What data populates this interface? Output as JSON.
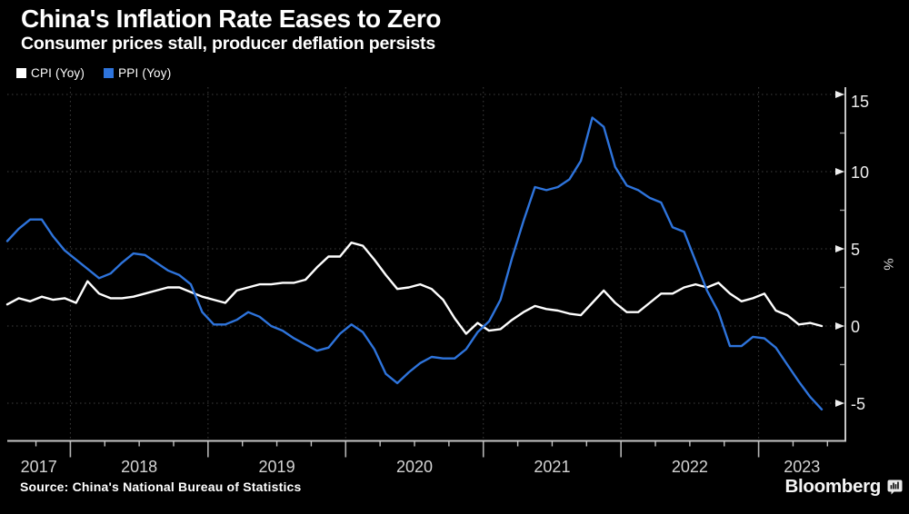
{
  "header": {
    "title": "China's Inflation Rate Eases to Zero",
    "subtitle": "Consumer prices stall, producer deflation persists"
  },
  "legend": {
    "items": [
      {
        "label": "CPI (Yoy)",
        "color": "#ffffff"
      },
      {
        "label": "PPI (Yoy)",
        "color": "#2e74dc"
      }
    ]
  },
  "chart_data": {
    "type": "line",
    "title": "China's Inflation Rate Eases to Zero",
    "subtitle": "Consumer prices stall, producer deflation persists",
    "x_start": "2017-07",
    "x_freq": "monthly",
    "x_year_labels": [
      "2017",
      "2018",
      "2019",
      "2020",
      "2021",
      "2022",
      "2023"
    ],
    "ylabel": "%",
    "ylim": [
      -7.5,
      15.5
    ],
    "yticks_major": [
      15,
      10,
      5,
      0,
      -5
    ],
    "yticks_minor": [
      12.5,
      7.5,
      2.5,
      -2.5
    ],
    "grid": "dotted",
    "legend_position": "top-left",
    "series": [
      {
        "name": "CPI (Yoy)",
        "color": "#ffffff",
        "values": [
          1.4,
          1.8,
          1.6,
          1.9,
          1.7,
          1.8,
          1.5,
          2.9,
          2.1,
          1.8,
          1.8,
          1.9,
          2.1,
          2.3,
          2.5,
          2.5,
          2.2,
          1.9,
          1.7,
          1.5,
          2.3,
          2.5,
          2.7,
          2.7,
          2.8,
          2.8,
          3.0,
          3.8,
          4.5,
          4.5,
          5.4,
          5.2,
          4.3,
          3.3,
          2.4,
          2.5,
          2.7,
          2.4,
          1.7,
          0.5,
          -0.5,
          0.2,
          -0.3,
          -0.2,
          0.4,
          0.9,
          1.3,
          1.1,
          1.0,
          0.8,
          0.7,
          1.5,
          2.3,
          1.5,
          0.9,
          0.9,
          1.5,
          2.1,
          2.1,
          2.5,
          2.7,
          2.5,
          2.8,
          2.1,
          1.6,
          1.8,
          2.1,
          1.0,
          0.7,
          0.1,
          0.2,
          0.0
        ]
      },
      {
        "name": "PPI (Yoy)",
        "color": "#2e74dc",
        "values": [
          5.5,
          6.3,
          6.9,
          6.9,
          5.8,
          4.9,
          4.3,
          3.7,
          3.1,
          3.4,
          4.1,
          4.7,
          4.6,
          4.1,
          3.6,
          3.3,
          2.7,
          0.9,
          0.1,
          0.1,
          0.4,
          0.9,
          0.6,
          0.0,
          -0.3,
          -0.8,
          -1.2,
          -1.6,
          -1.4,
          -0.5,
          0.1,
          -0.4,
          -1.5,
          -3.1,
          -3.7,
          -3.0,
          -2.4,
          -2.0,
          -2.1,
          -2.1,
          -1.5,
          -0.4,
          0.3,
          1.7,
          4.4,
          6.8,
          9.0,
          8.8,
          9.0,
          9.5,
          10.7,
          13.5,
          12.9,
          10.3,
          9.1,
          8.8,
          8.3,
          8.0,
          6.4,
          6.1,
          4.2,
          2.3,
          0.9,
          -1.3,
          -1.3,
          -0.7,
          -0.8,
          -1.4,
          -2.5,
          -3.6,
          -4.6,
          -5.4
        ]
      }
    ]
  },
  "footer": {
    "source": "Source: China's National Bureau of Statistics",
    "brand": "Bloomberg",
    "brand_icon": "bar-chart-bubble-icon"
  },
  "colors": {
    "background": "#000000",
    "axis": "#c6c6c6",
    "grid": "#3f3f3f",
    "year_label": "#d4d4d4",
    "ytick_label": "#eeeeee",
    "unit_label": "#dddddd"
  }
}
